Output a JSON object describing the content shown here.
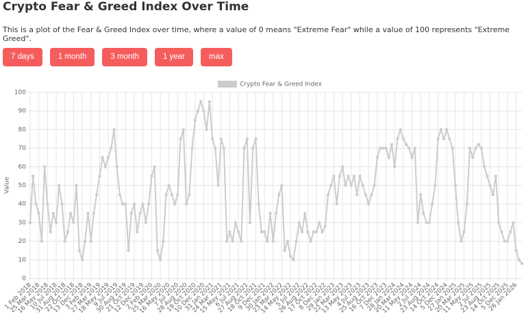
{
  "header": {
    "title": "Crypto Fear & Greed Index Over Time",
    "description": "This is a plot of the Fear & Greed Index over time, where a value of 0 means \"Extreme Fear\" while a value of 100 represents \"Extreme Greed\"."
  },
  "buttons": [
    "7 days",
    "1 month",
    "3 month",
    "1 year",
    "max"
  ],
  "chart_data": {
    "type": "line",
    "y_label": "Value",
    "grid": true,
    "categories": [
      "1 Feb 2018",
      null,
      null,
      "25 Mar 2018",
      null,
      null,
      "16 May 2018",
      null,
      null,
      "10 Jul 2018",
      null,
      null,
      "31 Aug 2018",
      null,
      null,
      "22 Oct 2018",
      null,
      null,
      "13 Dec 2018",
      null,
      null,
      "3 Feb 2019",
      null,
      null,
      "27 Mar 2019",
      null,
      null,
      "18 May 2019",
      null,
      null,
      "9 Jul 2019",
      null,
      null,
      "30 Aug 2019",
      null,
      null,
      "21 Oct 2019",
      null,
      null,
      "12 Dec 2019",
      null,
      null,
      "2 Feb 2020",
      null,
      null,
      "25 Mar 2020",
      null,
      null,
      "16 May 2020",
      null,
      null,
      "7 Jul 2020",
      null,
      null,
      "28 Aug 2020",
      null,
      null,
      "19 Oct 2020",
      null,
      null,
      "10 Dec 2020",
      null,
      null,
      "31 Jan 2021",
      null,
      null,
      "24 Mar 2021",
      null,
      null,
      "15 May 2021",
      null,
      null,
      "6 Jul 2021",
      null,
      null,
      "27 Aug 2021",
      null,
      null,
      "18 Oct 2021",
      null,
      null,
      "9 Dec 2021",
      null,
      null,
      "30 Jan 2022",
      null,
      null,
      "23 Mar 2022",
      null,
      null,
      "14 May 2022",
      null,
      null,
      "5 Jul 2022",
      null,
      null,
      "26 Aug 2022",
      null,
      null,
      "17 Oct 2022",
      null,
      null,
      "8 Dec 2022",
      null,
      null,
      "29 Jan 2023",
      null,
      null,
      "22 Mar 2023",
      null,
      null,
      "13 May 2023",
      null,
      null,
      "4 Jul 2023",
      null,
      null,
      "25 Aug 2023",
      null,
      null,
      "16 Oct 2023",
      null,
      null,
      "7 Dec 2023",
      null,
      null,
      "28 Jan 2024",
      null,
      null,
      "20 Mar 2024",
      null,
      null,
      "11 May 2024",
      null,
      null,
      "2 Jul 2024",
      null,
      null,
      "23 Aug 2024",
      null,
      null,
      "14 Oct 2024",
      null,
      null,
      "5 Dec 2024",
      null,
      null,
      "27 Jan 2025",
      null,
      null,
      "20 Mar 2025",
      null,
      null,
      "11 May 2025",
      null,
      null,
      "2 Jul 2025",
      null,
      null,
      "23 Aug 2025",
      null,
      null,
      "14 Oct 2025",
      null,
      null,
      "5 Dec 2025",
      null,
      null,
      "26 Jan 2026",
      null,
      null
    ],
    "series": [
      {
        "name": "Crypto Fear & Greed Index",
        "color": "#cccccc",
        "values": [
          30,
          55,
          40,
          35,
          20,
          60,
          40,
          25,
          35,
          30,
          50,
          40,
          20,
          25,
          35,
          30,
          50,
          15,
          10,
          20,
          35,
          20,
          35,
          45,
          55,
          65,
          60,
          65,
          70,
          80,
          60,
          45,
          40,
          40,
          15,
          35,
          40,
          25,
          35,
          40,
          30,
          40,
          55,
          60,
          15,
          10,
          20,
          45,
          50,
          45,
          40,
          45,
          75,
          80,
          40,
          45,
          70,
          85,
          90,
          95,
          90,
          80,
          95,
          75,
          70,
          50,
          75,
          70,
          20,
          25,
          20,
          30,
          25,
          20,
          70,
          75,
          30,
          70,
          75,
          40,
          25,
          25,
          20,
          35,
          20,
          35,
          45,
          50,
          15,
          20,
          12,
          10,
          20,
          30,
          25,
          35,
          25,
          20,
          25,
          25,
          30,
          25,
          28,
          45,
          50,
          55,
          40,
          55,
          60,
          50,
          55,
          50,
          55,
          45,
          55,
          50,
          45,
          40,
          45,
          50,
          65,
          70,
          70,
          70,
          65,
          72,
          60,
          75,
          80,
          75,
          72,
          70,
          65,
          70,
          30,
          45,
          35,
          30,
          30,
          40,
          50,
          75,
          80,
          75,
          80,
          75,
          70,
          50,
          30,
          20,
          25,
          40,
          70,
          65,
          70,
          72,
          70,
          60,
          55,
          50,
          45,
          55,
          30,
          25,
          20,
          20,
          25,
          30,
          15,
          10,
          8
        ]
      }
    ],
    "ylim": [
      0,
      100
    ],
    "yticks": [
      0,
      10,
      20,
      30,
      40,
      50,
      60,
      70,
      80,
      90,
      100
    ]
  }
}
